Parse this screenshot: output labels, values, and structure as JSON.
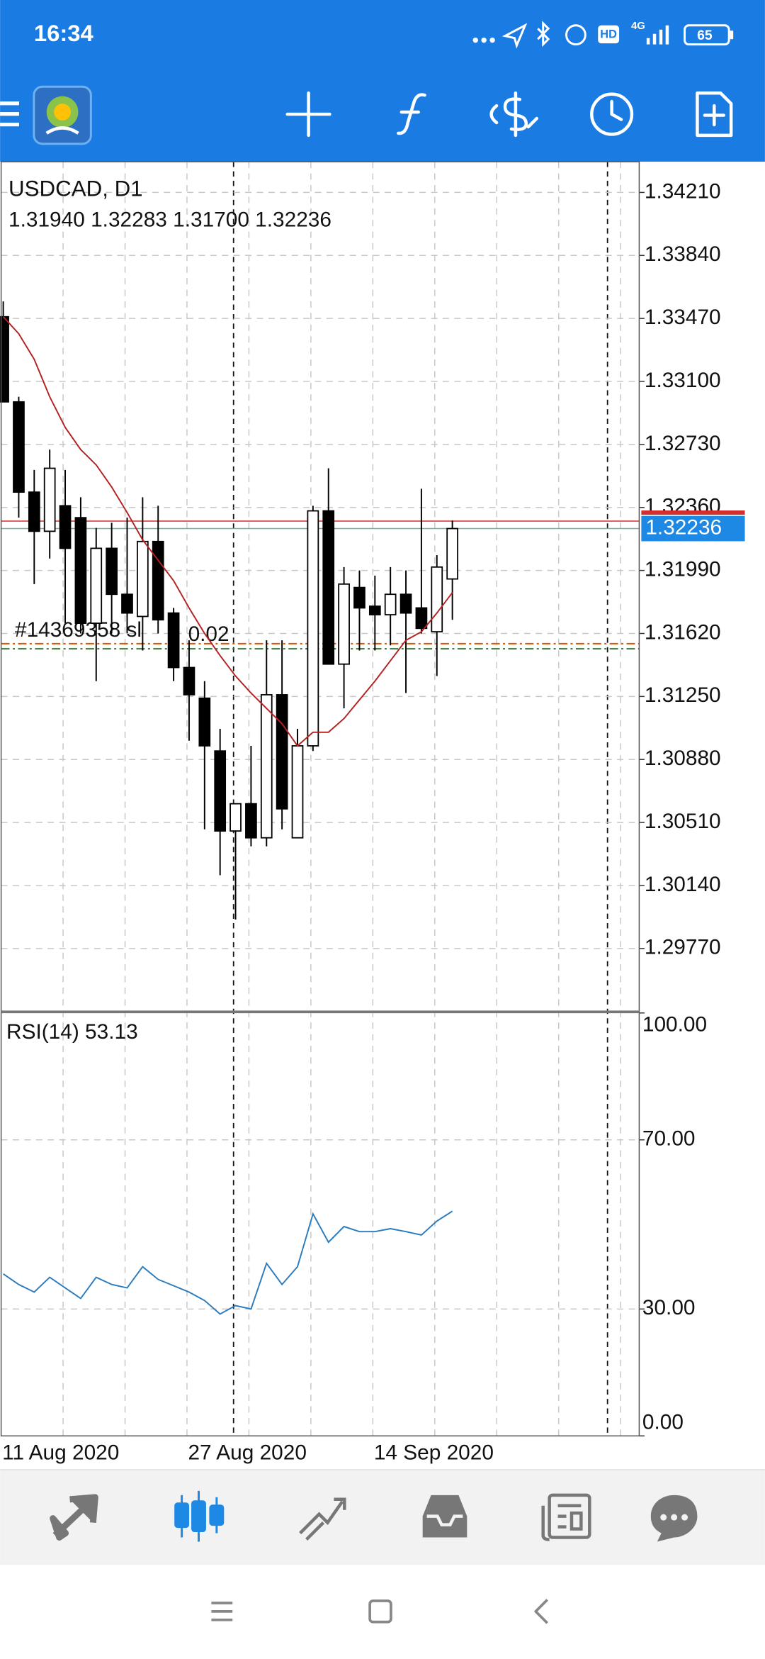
{
  "status_bar": {
    "time": "16:34",
    "hd": "HD",
    "network": "4G",
    "battery": "65"
  },
  "chart_data": {
    "type": "candlestick",
    "symbol_title": "USDCAD, D1",
    "ohlc_text": "1.31940 1.32283 1.31700 1.32236",
    "categories": [
      "11 Aug 2020",
      null,
      null,
      null,
      null,
      null,
      null,
      null,
      null,
      null,
      null,
      null,
      "27 Aug 2020",
      null,
      null,
      null,
      null,
      null,
      null,
      null,
      null,
      null,
      null,
      null,
      "14 Sep 2020",
      null,
      null,
      null,
      null,
      null
    ],
    "open": [
      1.3348,
      1.3298,
      1.3245,
      1.3222,
      1.3237,
      1.323,
      1.3168,
      1.3212,
      1.3185,
      1.3172,
      1.3216,
      1.3174,
      1.3142,
      1.3124,
      1.3093,
      1.3046,
      1.3062,
      1.3042,
      1.3126,
      1.3042,
      1.3096,
      1.3234,
      1.3144,
      1.3189,
      1.3178,
      1.3173,
      1.3185,
      1.3177,
      1.3163,
      1.3194
    ],
    "high": [
      1.3357,
      1.3301,
      1.3258,
      1.327,
      1.3258,
      1.3242,
      1.3224,
      1.3227,
      1.323,
      1.3242,
      1.3237,
      1.3177,
      1.3158,
      1.3134,
      1.3106,
      1.3062,
      1.3096,
      1.3158,
      1.3158,
      1.3106,
      1.3237,
      1.3259,
      1.3201,
      1.3199,
      1.3196,
      1.3201,
      1.3199,
      1.3247,
      1.3208,
      1.32283
    ],
    "low": [
      1.3298,
      1.323,
      1.3191,
      1.3206,
      1.3168,
      1.3162,
      1.3134,
      1.3162,
      1.3162,
      1.3152,
      1.3162,
      1.3134,
      1.3099,
      1.3047,
      1.302,
      1.2994,
      1.3037,
      1.3037,
      1.3047,
      1.3042,
      1.3093,
      1.3144,
      1.3118,
      1.3152,
      1.3152,
      1.3155,
      1.3127,
      1.3162,
      1.3137,
      1.317
    ],
    "close": [
      1.3298,
      1.3245,
      1.3222,
      1.3259,
      1.3212,
      1.3168,
      1.3212,
      1.3185,
      1.3174,
      1.3216,
      1.317,
      1.3142,
      1.3126,
      1.3096,
      1.3046,
      1.3062,
      1.3042,
      1.3126,
      1.3059,
      1.3096,
      1.3234,
      1.3144,
      1.3191,
      1.3177,
      1.3173,
      1.3185,
      1.3174,
      1.3165,
      1.3201,
      1.32236
    ],
    "up_color": "#ffffff",
    "down_color": "#000000",
    "ma": {
      "color": "#b22222",
      "values": [
        1.3348,
        1.3338,
        1.3323,
        1.3301,
        1.3283,
        1.327,
        1.3261,
        1.3248,
        1.3233,
        1.3217,
        1.3205,
        1.3193,
        1.3177,
        1.3162,
        1.3149,
        1.3137,
        1.3127,
        1.3118,
        1.3109,
        1.3096,
        1.3104,
        1.3104,
        1.3112,
        1.3123,
        1.3134,
        1.3146,
        1.3158,
        1.3163,
        1.3174,
        1.3186
      ]
    },
    "ylim": [
      1.2941,
      1.3439
    ],
    "yticks": [
      {
        "value": 1.3421,
        "label": "1.34210"
      },
      {
        "value": 1.3384,
        "label": "1.33840"
      },
      {
        "value": 1.3347,
        "label": "1.33470"
      },
      {
        "value": 1.331,
        "label": "1.33100"
      },
      {
        "value": 1.3273,
        "label": "1.32730"
      },
      {
        "value": 1.3236,
        "label": "1.32360"
      },
      {
        "value": 1.3199,
        "label": "1.31990"
      },
      {
        "value": 1.3162,
        "label": "1.31620"
      },
      {
        "value": 1.3125,
        "label": "1.31250"
      },
      {
        "value": 1.3088,
        "label": "1.30880"
      },
      {
        "value": 1.3051,
        "label": "1.30510"
      },
      {
        "value": 1.3014,
        "label": "1.30140"
      },
      {
        "value": 1.2977,
        "label": "1.29770"
      }
    ],
    "grid": true,
    "last_price": {
      "value": 1.32236,
      "label": "1.32236",
      "color": "#1e88e5"
    },
    "ask_line": {
      "value": 1.3228,
      "color": "#d32f2f"
    },
    "order": {
      "label": "#14369358 sl",
      "lot": "0.02",
      "lines": [
        {
          "value": 1.3156,
          "color": "#e65100"
        },
        {
          "value": 1.3153,
          "color": "#2e7d32"
        }
      ]
    },
    "rsi": {
      "label": "RSI(14) 53.13",
      "color": "#2b7bbd",
      "values": [
        38.3,
        35.8,
        34,
        37.5,
        35,
        32.5,
        37.5,
        35.8,
        35,
        40,
        37,
        35.5,
        34,
        32,
        28.8,
        30.8,
        30,
        40.8,
        35.8,
        40,
        52.5,
        45.8,
        49.5,
        48.3,
        48.3,
        49,
        48.3,
        47.5,
        50.8,
        53.13
      ],
      "ylim": [
        0,
        100
      ],
      "yticks": [
        {
          "value": 100,
          "label": "100.00"
        },
        {
          "value": 70,
          "label": "70.00"
        },
        {
          "value": 30,
          "label": "30.00"
        },
        {
          "value": 0,
          "label": "0.00"
        }
      ]
    }
  }
}
